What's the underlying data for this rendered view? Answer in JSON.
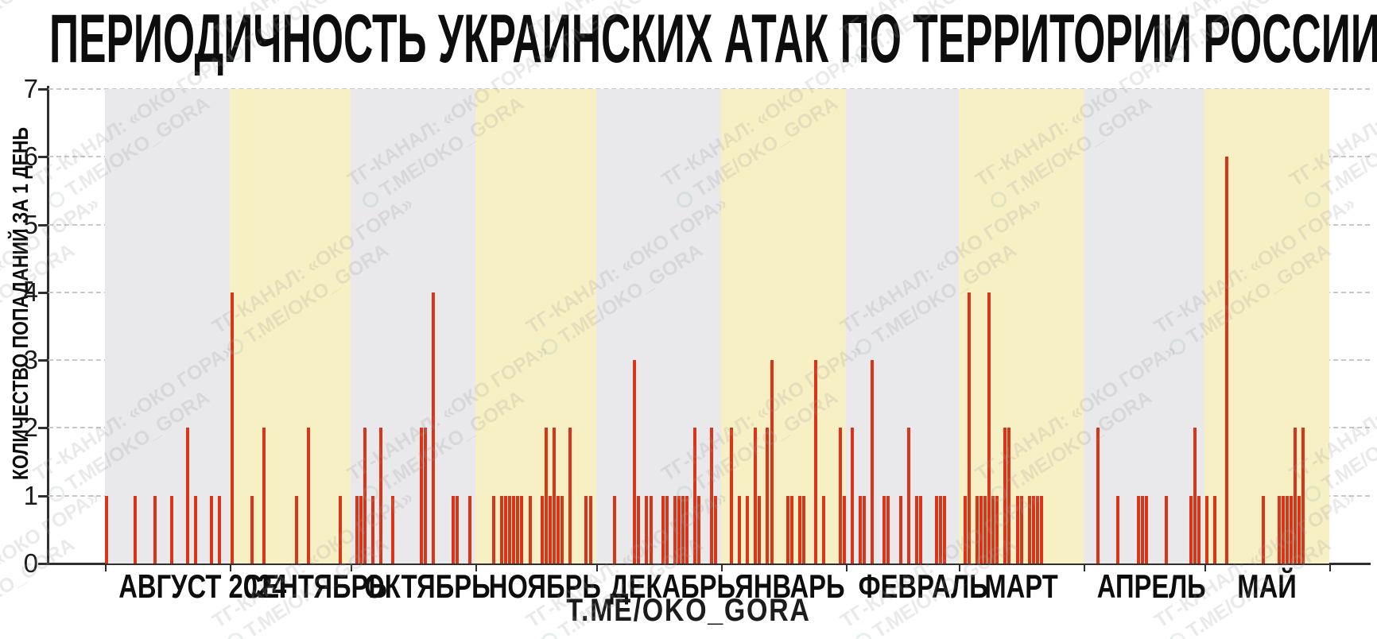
{
  "header": {
    "title": "ПЕРИОДИЧНОСТЬ УКРАИНСКИХ АТАК ПО ТЕРРИТОРИИ РОССИИ:"
  },
  "axis": {
    "ylabel": "КОЛИЧЕСТВО ПОПАДАНИЙ ЗА 1 ДЕНЬ"
  },
  "footer": {
    "label": "T.ME/OKO_GORA"
  },
  "watermark": {
    "line1": "ТГ-КАНАЛ: «ОКО ГОРА»",
    "line2": "T.ME/OKO_GORA"
  },
  "colors": {
    "bar": "#dc3418",
    "band_gray": "#e9e9ec",
    "band_yellow": "#f8f0c5",
    "axis": "#2f2f2f",
    "grid": "#c8c8c8",
    "title": "#0d0d0d",
    "watermark": "#9a9a9a"
  },
  "chart_data": {
    "type": "bar",
    "title": "ПЕРИОДИЧНОСТЬ УКРАИНСКИХ АТАК ПО ТЕРРИТОРИИ РОССИИ:",
    "xlabel": "",
    "ylabel": "КОЛИЧЕСТВО ПОПАДАНИЙ ЗА 1 ДЕНЬ",
    "ylim": [
      0,
      7
    ],
    "yticks": [
      0,
      1,
      2,
      3,
      4,
      5,
      6,
      7
    ],
    "grid": true,
    "legend": "none",
    "lead_days": 14,
    "trail_days": 10,
    "bar_unit": "hits per day",
    "months": [
      {
        "label": "АВГУСТ 2024",
        "days": 31,
        "band": "gray",
        "bars": [
          [
            1,
            1
          ],
          [
            8,
            1
          ],
          [
            13,
            1
          ],
          [
            17,
            1
          ],
          [
            21,
            2
          ],
          [
            23,
            1
          ],
          [
            27,
            1
          ],
          [
            29,
            1
          ]
        ]
      },
      {
        "label": "СЕНТЯБРЬ",
        "days": 30,
        "band": "yellow",
        "bars": [
          [
            1,
            4
          ],
          [
            6,
            1
          ],
          [
            9,
            2
          ],
          [
            17,
            1
          ],
          [
            20,
            2
          ],
          [
            28,
            1
          ]
        ]
      },
      {
        "label": "ОКТЯБРЬ",
        "days": 31,
        "band": "gray",
        "bars": [
          [
            2,
            1
          ],
          [
            3,
            1
          ],
          [
            4,
            2
          ],
          [
            6,
            1
          ],
          [
            8,
            2
          ],
          [
            11,
            1
          ],
          [
            18,
            2
          ],
          [
            19,
            2
          ],
          [
            21,
            4
          ],
          [
            26,
            1
          ],
          [
            27,
            1
          ],
          [
            30,
            1
          ]
        ]
      },
      {
        "label": "НОЯБРЬ",
        "days": 30,
        "band": "yellow",
        "bars": [
          [
            5,
            1
          ],
          [
            7,
            1
          ],
          [
            8,
            1
          ],
          [
            9,
            1
          ],
          [
            10,
            1
          ],
          [
            11,
            1
          ],
          [
            12,
            1
          ],
          [
            14,
            1
          ],
          [
            17,
            1
          ],
          [
            18,
            2
          ],
          [
            19,
            1
          ],
          [
            20,
            2
          ],
          [
            21,
            1
          ],
          [
            22,
            1
          ],
          [
            24,
            2
          ],
          [
            28,
            1
          ],
          [
            29,
            1
          ]
        ]
      },
      {
        "label": "ДЕКАБРЬ",
        "days": 31,
        "band": "gray",
        "bars": [
          [
            5,
            1
          ],
          [
            10,
            3
          ],
          [
            11,
            1
          ],
          [
            13,
            1
          ],
          [
            14,
            1
          ],
          [
            17,
            1
          ],
          [
            18,
            1
          ],
          [
            20,
            1
          ],
          [
            21,
            1
          ],
          [
            22,
            1
          ],
          [
            23,
            1
          ],
          [
            25,
            2
          ],
          [
            26,
            1
          ],
          [
            29,
            2
          ],
          [
            30,
            1
          ]
        ]
      },
      {
        "label": "ЯНВАРЬ",
        "days": 31,
        "band": "yellow",
        "bars": [
          [
            3,
            2
          ],
          [
            5,
            1
          ],
          [
            7,
            1
          ],
          [
            9,
            2
          ],
          [
            10,
            1
          ],
          [
            12,
            2
          ],
          [
            13,
            3
          ],
          [
            17,
            1
          ],
          [
            18,
            1
          ],
          [
            20,
            1
          ],
          [
            21,
            1
          ],
          [
            24,
            3
          ],
          [
            26,
            1
          ],
          [
            30,
            2
          ],
          [
            31,
            1
          ]
        ]
      },
      {
        "label": "ФЕВРАЛЬ",
        "days": 28,
        "band": "gray",
        "bars": [
          [
            2,
            2
          ],
          [
            4,
            1
          ],
          [
            5,
            1
          ],
          [
            7,
            3
          ],
          [
            10,
            1
          ],
          [
            11,
            1
          ],
          [
            14,
            1
          ],
          [
            16,
            2
          ],
          [
            18,
            1
          ],
          [
            19,
            1
          ],
          [
            23,
            1
          ],
          [
            24,
            1
          ],
          [
            25,
            1
          ]
        ]
      },
      {
        "label": "МАРТ",
        "days": 31,
        "band": "yellow",
        "bars": [
          [
            2,
            1
          ],
          [
            3,
            4
          ],
          [
            5,
            1
          ],
          [
            6,
            1
          ],
          [
            7,
            1
          ],
          [
            8,
            4
          ],
          [
            9,
            1
          ],
          [
            10,
            1
          ],
          [
            12,
            2
          ],
          [
            13,
            2
          ],
          [
            15,
            1
          ],
          [
            16,
            1
          ],
          [
            18,
            1
          ],
          [
            19,
            1
          ],
          [
            20,
            1
          ],
          [
            21,
            1
          ]
        ]
      },
      {
        "label": "АПРЕЛЬ",
        "days": 30,
        "band": "gray",
        "bars": [
          [
            4,
            2
          ],
          [
            9,
            1
          ],
          [
            14,
            1
          ],
          [
            15,
            1
          ],
          [
            16,
            1
          ],
          [
            21,
            1
          ],
          [
            27,
            1
          ],
          [
            28,
            2
          ],
          [
            29,
            1
          ]
        ]
      },
      {
        "label": "МАЙ",
        "days": 31,
        "band": "yellow",
        "bars": [
          [
            1,
            1
          ],
          [
            3,
            1
          ],
          [
            6,
            6
          ],
          [
            15,
            1
          ],
          [
            19,
            1
          ],
          [
            20,
            1
          ],
          [
            21,
            1
          ],
          [
            22,
            1
          ],
          [
            23,
            2
          ],
          [
            24,
            1
          ],
          [
            25,
            2
          ]
        ]
      }
    ]
  }
}
